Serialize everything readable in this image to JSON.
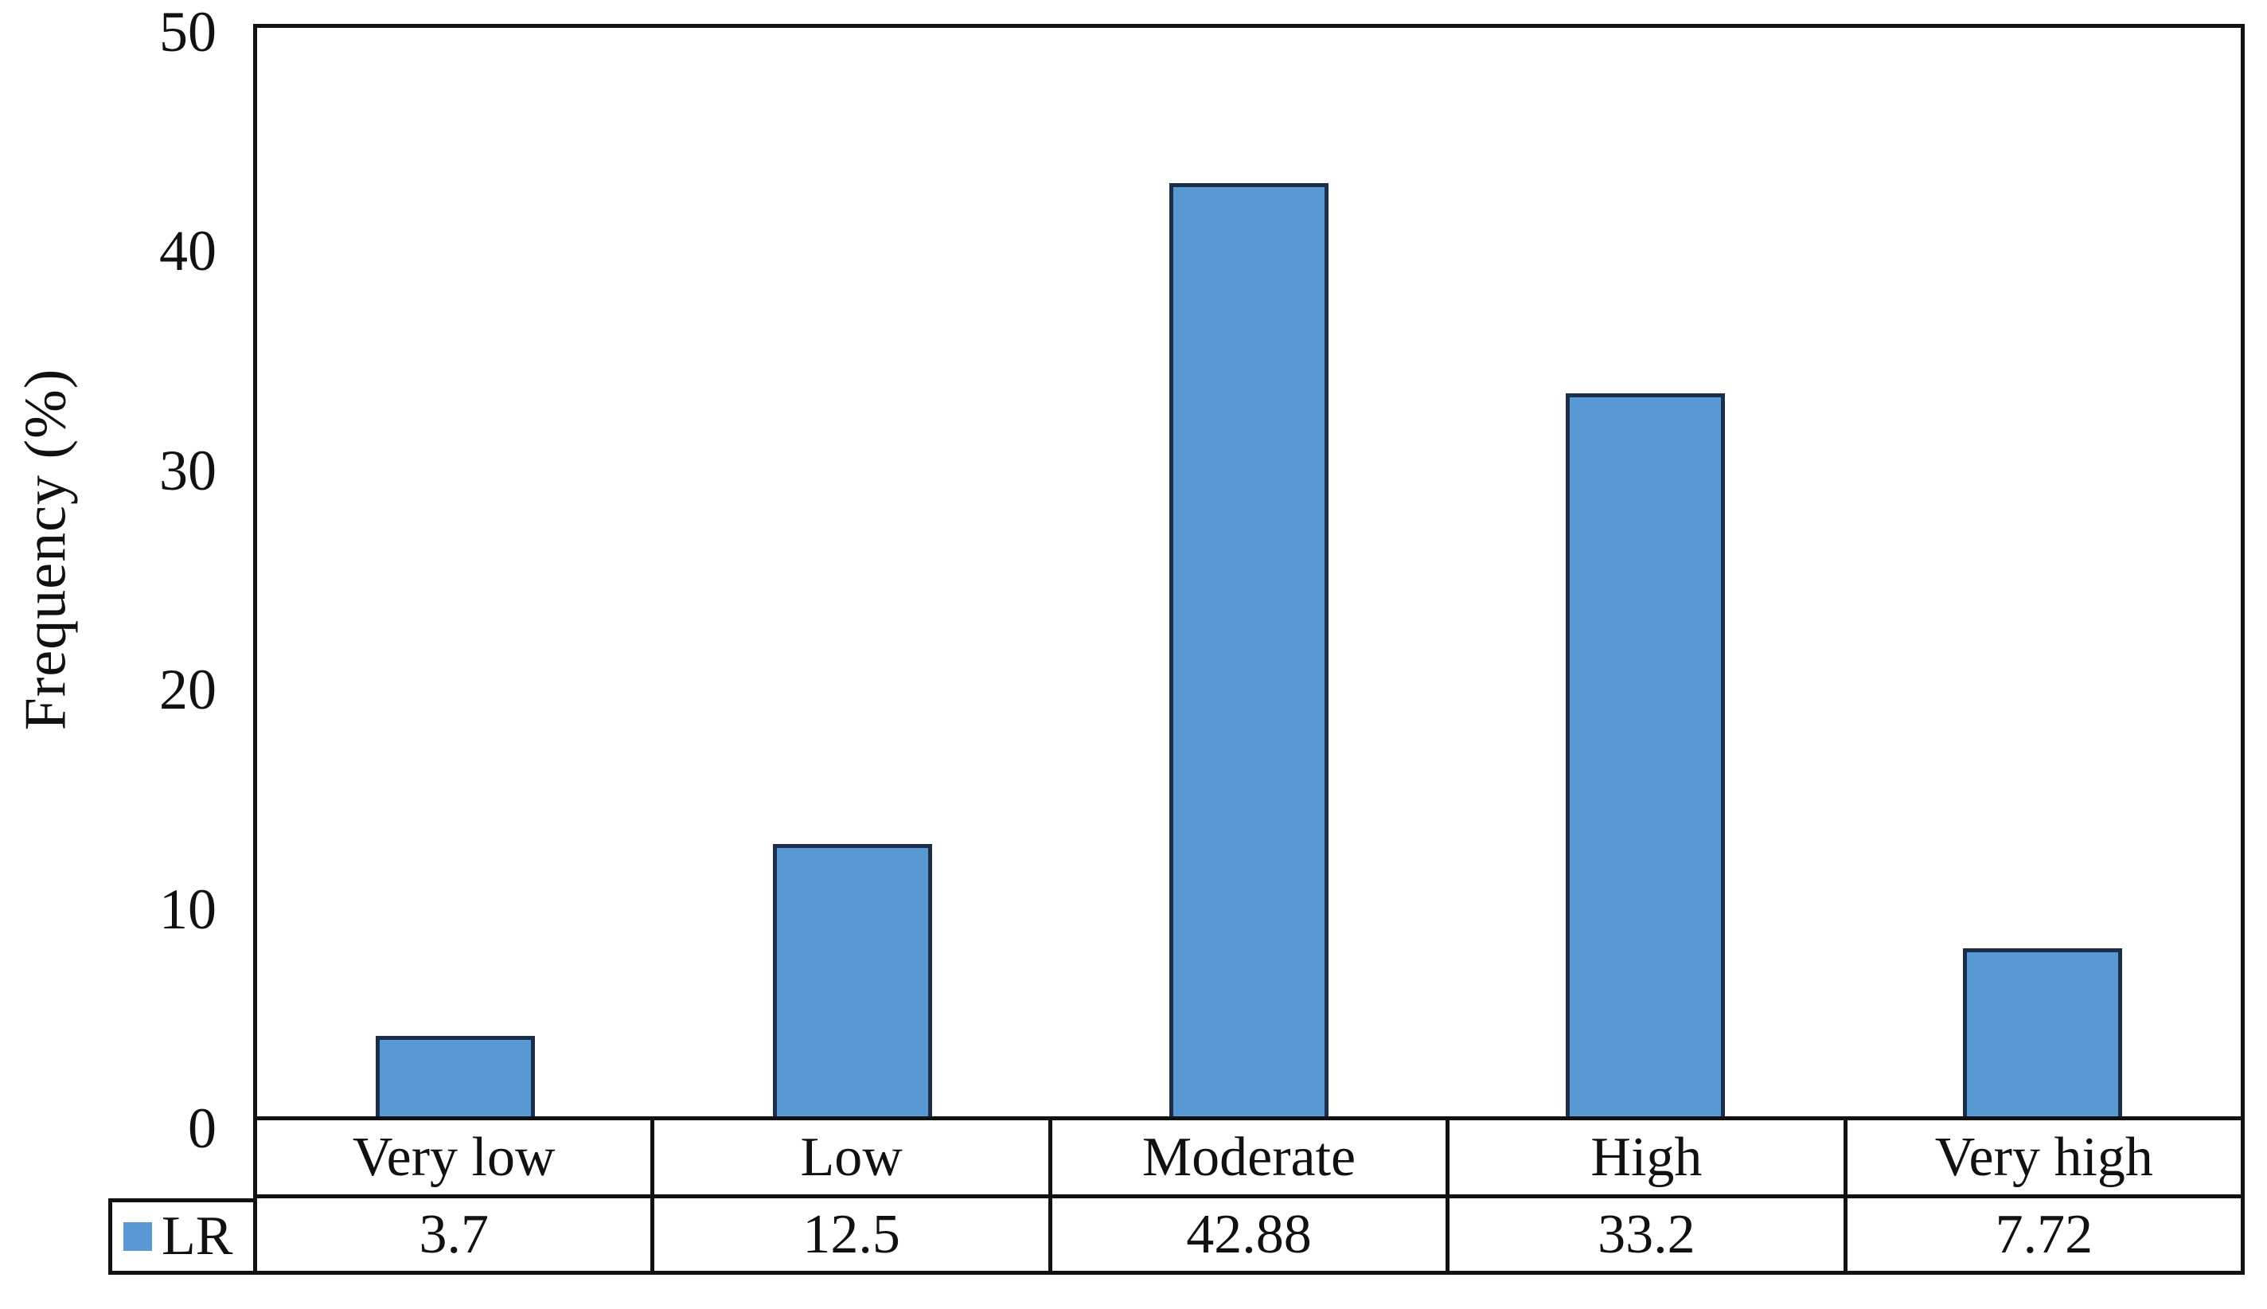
{
  "figure": {
    "y_axis_title": "Frequency (%)",
    "legend_label": "LR"
  },
  "chart_data": {
    "type": "bar",
    "title": "",
    "xlabel": "",
    "ylabel": "Frequency (%)",
    "categories": [
      "Very low",
      "Low",
      "Moderate",
      "High",
      "Very high"
    ],
    "series": [
      {
        "name": "LR",
        "values": [
          3.7,
          12.5,
          42.88,
          33.2,
          7.72
        ]
      }
    ],
    "ylim": [
      0,
      50
    ],
    "yticks": [
      0,
      10,
      20,
      30,
      40,
      50
    ],
    "grid": false,
    "legend_position": "data-table-left",
    "data_table": true,
    "bar_fill_color": "#5999d3",
    "bar_border_color": "#1c2f4a",
    "axis_line_color": "#111111"
  }
}
